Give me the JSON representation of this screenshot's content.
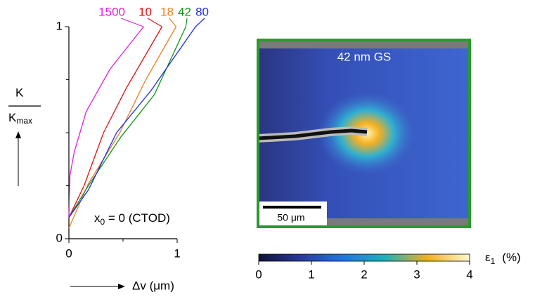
{
  "chart_data": {
    "type": "line",
    "xlim": [
      0,
      1
    ],
    "ylim": [
      0,
      1
    ],
    "xticks": [
      0,
      1
    ],
    "yticks": [
      0,
      1
    ],
    "xminor_ticks": [
      0.5
    ],
    "yminor_ticks": [
      0.25,
      0.5,
      0.75
    ],
    "xlabel": "Δv  (μm)",
    "ylabel": {
      "numerator": "K",
      "denominator": "K",
      "denominator_sub": "max"
    },
    "annotation": {
      "text": "x",
      "sub": "0",
      "rest": " = 0 (CTOD)"
    },
    "series": [
      {
        "name": "1500",
        "color": "#e020e0",
        "x": [
          0,
          0.01,
          0.05,
          0.16,
          0.38,
          0.69
        ],
        "values": [
          0.1,
          0.3,
          0.41,
          0.6,
          0.8,
          1.0
        ]
      },
      {
        "name": "10",
        "color": "#e01010",
        "x": [
          0,
          0.14,
          0.32,
          0.53,
          0.86
        ],
        "values": [
          0.1,
          0.25,
          0.5,
          0.71,
          1.0
        ]
      },
      {
        "name": "18",
        "color": "#f07d20",
        "x": [
          0,
          0.18,
          0.47,
          0.71,
          0.99
        ],
        "values": [
          0.05,
          0.26,
          0.5,
          0.75,
          1.0
        ]
      },
      {
        "name": "42",
        "color": "#149614",
        "x": [
          0,
          0.18,
          0.48,
          0.79,
          1.08
        ],
        "values": [
          0.1,
          0.25,
          0.48,
          0.68,
          1.0
        ]
      },
      {
        "name": "80",
        "color": "#1a2ee0",
        "x": [
          0,
          0.18,
          0.44,
          0.76,
          1.17
        ],
        "values": [
          0.1,
          0.23,
          0.5,
          0.7,
          1.0
        ]
      }
    ]
  },
  "image_panel": {
    "title": "42 nm GS",
    "scale_bar": "50 μm"
  },
  "colorbar": {
    "lim": [
      0,
      4
    ],
    "ticks": [
      0,
      1,
      2,
      3,
      4
    ],
    "label": "ε",
    "label_sub": "1",
    "unit": "(%)"
  }
}
